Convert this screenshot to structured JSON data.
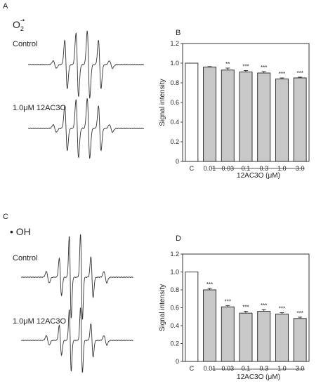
{
  "panels": {
    "A": {
      "letter": "A",
      "radical": "O",
      "radical_sub": "2",
      "radical_sup": "-•",
      "control_label": "Control",
      "treated_label": "1.0μM 12AC3O"
    },
    "C": {
      "letter": "C",
      "radical": "• OH",
      "control_label": "Control",
      "treated_label": "1.0μM 12AC3O"
    }
  },
  "chart_data": [
    {
      "panel": "B",
      "type": "bar",
      "title": "",
      "xlabel": "12AC3O (μM)",
      "ylabel": "Signal intensity",
      "ylim": [
        0,
        1.2
      ],
      "yticks": [
        "0",
        "0.2",
        "0.4",
        "0.6",
        "0.8",
        "1.0",
        "1.2"
      ],
      "categories": [
        "C",
        "0.01",
        "0.03",
        "0.1",
        "0.3",
        "1.0",
        "3.0"
      ],
      "values": [
        1.0,
        0.96,
        0.93,
        0.91,
        0.9,
        0.84,
        0.85
      ],
      "errors": [
        0,
        0.005,
        0.02,
        0.015,
        0.015,
        0.01,
        0.008
      ],
      "significance": [
        "",
        "",
        "**",
        "***",
        "***",
        "***",
        "***"
      ],
      "fills": [
        "#ffffff",
        "#c8c8c8",
        "#c8c8c8",
        "#c8c8c8",
        "#c8c8c8",
        "#c8c8c8",
        "#c8c8c8"
      ]
    },
    {
      "panel": "D",
      "type": "bar",
      "title": "",
      "xlabel": "12AC3O (μM)",
      "ylabel": "Signal intensity",
      "ylim": [
        0,
        1.2
      ],
      "yticks": [
        "0",
        "0.2",
        "0.4",
        "0.6",
        "0.8",
        "1.0",
        "1.2"
      ],
      "categories": [
        "C",
        "0.01",
        "0.03",
        "0.1",
        "0.3",
        "1.0",
        "3.0"
      ],
      "values": [
        1.0,
        0.8,
        0.61,
        0.54,
        0.56,
        0.53,
        0.48
      ],
      "errors": [
        0,
        0.015,
        0.015,
        0.02,
        0.02,
        0.015,
        0.015
      ],
      "significance": [
        "",
        "***",
        "***",
        "***",
        "***",
        "***",
        "***"
      ],
      "fills": [
        "#ffffff",
        "#c8c8c8",
        "#c8c8c8",
        "#c8c8c8",
        "#c8c8c8",
        "#c8c8c8",
        "#c8c8c8"
      ]
    }
  ],
  "colors": {
    "axis": "#222222",
    "trace": "#333333",
    "star": "#666666"
  }
}
